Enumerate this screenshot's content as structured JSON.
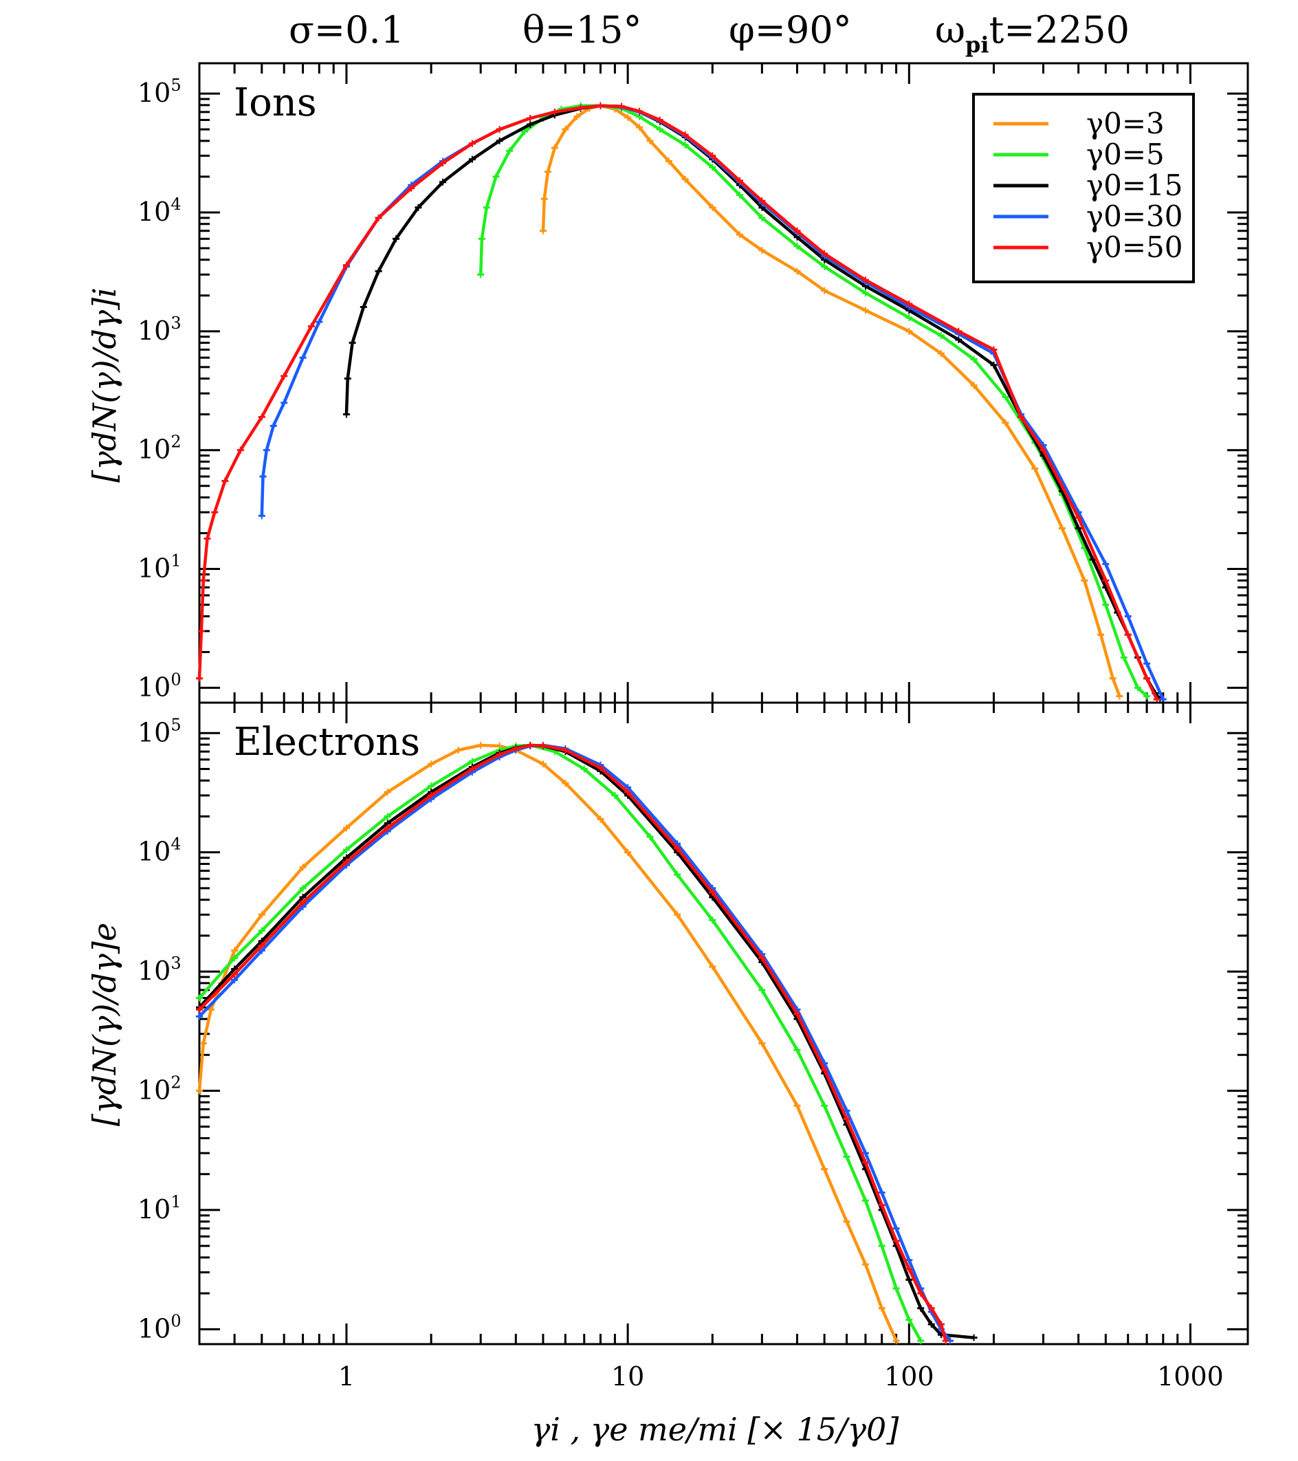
{
  "header": {
    "sigma": "σ=0.1",
    "theta": "θ=15°",
    "phi": "φ=90°",
    "time_omega": "ω",
    "time_sub": "pi",
    "time_rest": "t=2250"
  },
  "axes": {
    "xlabel": "γi , γe me/mi   [× 15/γ0]",
    "ylabel_top": "[γdN(γ)/dγ]i",
    "ylabel_bottom": "[γdN(γ)/dγ]e",
    "x_ticks": [
      "1",
      "10",
      "100",
      "1000"
    ],
    "y_tick_base": "10",
    "y_tick_exponents": [
      "0",
      "1",
      "2",
      "3",
      "4",
      "5"
    ]
  },
  "colors": {
    "g3": "#ff9410",
    "g5": "#22ee22",
    "g15": "#000000",
    "g30": "#1a5cff",
    "g50": "#ff1010"
  },
  "chart_data": [
    {
      "type": "line",
      "title": "Ions",
      "xscale": "log",
      "yscale": "log",
      "xlim": [
        0.3,
        1600
      ],
      "ylim": [
        0.75,
        180000
      ],
      "legend": [
        "γ0=3",
        "γ0=5",
        "γ0=15",
        "γ0=30",
        "γ0=50"
      ],
      "legend_position": "top-right",
      "series": [
        {
          "name": "γ0=3",
          "color": "#ff9410",
          "x": [
            5.0,
            5.05,
            5.2,
            5.5,
            6.0,
            6.6,
            7.3,
            8.0,
            9.0,
            10,
            11,
            12,
            14,
            16,
            20,
            25,
            30,
            40,
            50,
            70,
            100,
            130,
            170,
            220,
            280,
            350,
            420,
            480,
            530,
            560
          ],
          "y": [
            7000,
            13000,
            22000,
            35000,
            50000,
            64000,
            75000,
            79000,
            74000,
            63000,
            52000,
            40000,
            27000,
            19000,
            11000,
            6500,
            4800,
            3200,
            2200,
            1500,
            1000,
            650,
            350,
            170,
            70,
            22,
            8,
            2.8,
            1.2,
            0.85
          ]
        },
        {
          "name": "γ0=5",
          "color": "#22ee22",
          "x": [
            3.0,
            3.03,
            3.15,
            3.4,
            3.8,
            4.3,
            5.0,
            5.8,
            6.8,
            8.0,
            9.5,
            11,
            13,
            16,
            20,
            25,
            30,
            40,
            50,
            70,
            100,
            130,
            170,
            220,
            280,
            350,
            420,
            500,
            580,
            650,
            700
          ],
          "y": [
            3000,
            6000,
            11000,
            20000,
            33000,
            48000,
            62000,
            74000,
            79000,
            79000,
            75000,
            64000,
            50000,
            37000,
            24000,
            14000,
            9000,
            5200,
            3500,
            2100,
            1300,
            920,
            580,
            280,
            115,
            42,
            15,
            5,
            1.8,
            1.0,
            0.85
          ]
        },
        {
          "name": "γ0=15",
          "color": "#000000",
          "x": [
            1.0,
            1.01,
            1.05,
            1.15,
            1.3,
            1.5,
            1.8,
            2.2,
            2.8,
            3.5,
            4.5,
            5.5,
            6.8,
            8.0,
            9.5,
            11,
            13,
            16,
            20,
            25,
            30,
            40,
            50,
            70,
            100,
            150,
            200,
            250,
            300,
            350,
            400,
            450,
            500,
            550,
            600,
            650,
            700,
            750,
            780
          ],
          "y": [
            200,
            400,
            800,
            1600,
            3200,
            6000,
            11000,
            18000,
            28000,
            40000,
            55000,
            66000,
            75000,
            79000,
            78000,
            70000,
            58000,
            43000,
            28000,
            17000,
            11000,
            6200,
            4000,
            2400,
            1500,
            850,
            520,
            190,
            90,
            45,
            22,
            12,
            7,
            4.3,
            2.8,
            1.8,
            1.2,
            0.9,
            0.8
          ]
        },
        {
          "name": "γ0=30",
          "color": "#1a5cff",
          "x": [
            0.5,
            0.505,
            0.52,
            0.55,
            0.6,
            0.7,
            0.8,
            1.0,
            1.3,
            1.7,
            2.2,
            2.8,
            3.5,
            4.5,
            5.5,
            6.8,
            8.0,
            9.5,
            11,
            13,
            16,
            20,
            25,
            30,
            40,
            50,
            70,
            100,
            150,
            200,
            250,
            300,
            400,
            500,
            600,
            700,
            800
          ],
          "y": [
            28,
            60,
            100,
            160,
            250,
            600,
            1200,
            3500,
            9000,
            17000,
            27000,
            38000,
            50000,
            62000,
            70000,
            76000,
            79000,
            77000,
            70000,
            59000,
            44000,
            29000,
            18000,
            12000,
            6800,
            4300,
            2600,
            1600,
            950,
            650,
            200,
            110,
            30,
            11,
            4,
            1.6,
            0.8
          ]
        },
        {
          "name": "γ0=50",
          "color": "#ff1010",
          "x": [
            0.3,
            0.305,
            0.31,
            0.32,
            0.34,
            0.37,
            0.42,
            0.5,
            0.6,
            0.75,
            1.0,
            1.3,
            1.7,
            2.2,
            2.8,
            3.5,
            4.5,
            5.5,
            6.8,
            8.0,
            9.5,
            11,
            13,
            16,
            20,
            25,
            30,
            40,
            50,
            70,
            100,
            150,
            200,
            250,
            300,
            400,
            500,
            600,
            700,
            760
          ],
          "y": [
            1.2,
            3,
            8,
            18,
            30,
            55,
            100,
            190,
            420,
            1100,
            3600,
            9000,
            16000,
            26000,
            38000,
            50000,
            62000,
            70000,
            76000,
            79000,
            78000,
            71000,
            60000,
            45000,
            30000,
            18500,
            12500,
            7000,
            4500,
            2700,
            1700,
            1000,
            700,
            190,
            100,
            27,
            8,
            2.8,
            1.2,
            0.8
          ]
        }
      ]
    },
    {
      "type": "line",
      "title": "Electrons",
      "xscale": "log",
      "yscale": "log",
      "xlim": [
        0.3,
        1600
      ],
      "ylim": [
        0.75,
        180000
      ],
      "series": [
        {
          "name": "γ0=3",
          "color": "#ff9410",
          "x": [
            0.3,
            0.31,
            0.33,
            0.36,
            0.4,
            0.5,
            0.7,
            1.0,
            1.4,
            2.0,
            2.5,
            3.0,
            3.5,
            4.0,
            5.0,
            6.0,
            8.0,
            10,
            15,
            20,
            30,
            40,
            50,
            60,
            70,
            80,
            90
          ],
          "y": [
            100,
            250,
            480,
            800,
            1500,
            3000,
            7500,
            16000,
            32000,
            55000,
            72000,
            79000,
            78000,
            72000,
            55000,
            38000,
            19000,
            10000,
            3000,
            1100,
            250,
            75,
            22,
            8,
            3.5,
            1.5,
            0.8
          ]
        },
        {
          "name": "γ0=5",
          "color": "#22ee22",
          "x": [
            0.3,
            0.4,
            0.5,
            0.7,
            1.0,
            1.4,
            2.0,
            2.8,
            3.5,
            4.0,
            4.5,
            5.5,
            7.0,
            9.0,
            12,
            15,
            20,
            30,
            40,
            50,
            60,
            70,
            80,
            90,
            100,
            110
          ],
          "y": [
            600,
            1300,
            2200,
            5000,
            10500,
            20000,
            36000,
            58000,
            72000,
            78000,
            79000,
            70000,
            50000,
            30000,
            13500,
            6500,
            2700,
            700,
            220,
            75,
            28,
            12,
            5,
            2.2,
            1.2,
            0.8
          ]
        },
        {
          "name": "γ0=15",
          "color": "#000000",
          "x": [
            0.3,
            0.4,
            0.5,
            0.7,
            1.0,
            1.4,
            2.0,
            2.8,
            3.5,
            4.0,
            4.5,
            5.0,
            6.0,
            8.0,
            10,
            15,
            20,
            30,
            40,
            50,
            60,
            70,
            80,
            90,
            100,
            110,
            120,
            130,
            170
          ],
          "y": [
            500,
            1050,
            1800,
            4200,
            9000,
            17500,
            32000,
            52000,
            68000,
            75000,
            79000,
            78000,
            70000,
            48000,
            30000,
            10000,
            4200,
            1200,
            400,
            140,
            52,
            22,
            10,
            5,
            2.6,
            1.5,
            1.1,
            0.9,
            0.85
          ]
        },
        {
          "name": "γ0=30",
          "color": "#1a5cff",
          "x": [
            0.3,
            0.4,
            0.5,
            0.7,
            1.0,
            1.4,
            2.0,
            2.8,
            3.5,
            4.0,
            4.5,
            5.0,
            6.0,
            8.0,
            10,
            15,
            20,
            30,
            40,
            50,
            60,
            70,
            80,
            90,
            100,
            110,
            120,
            130,
            140
          ],
          "y": [
            420,
            850,
            1500,
            3500,
            7800,
            15000,
            28000,
            47000,
            63000,
            72000,
            78000,
            79000,
            74000,
            54000,
            35000,
            11800,
            5000,
            1400,
            480,
            170,
            68,
            30,
            14,
            7,
            3.8,
            2.2,
            1.4,
            1.0,
            0.8
          ]
        },
        {
          "name": "γ0=50",
          "color": "#ff1010",
          "x": [
            0.3,
            0.4,
            0.5,
            0.7,
            1.0,
            1.4,
            2.0,
            2.8,
            3.5,
            4.0,
            4.5,
            5.0,
            6.0,
            8.0,
            10,
            15,
            20,
            30,
            40,
            50,
            60,
            70,
            80,
            90,
            100,
            110,
            120,
            130,
            135
          ],
          "y": [
            480,
            950,
            1650,
            3800,
            8300,
            16000,
            30000,
            50000,
            66000,
            74000,
            79000,
            78500,
            72000,
            51000,
            32000,
            10800,
            4600,
            1300,
            440,
            150,
            58,
            25,
            11,
            5.5,
            3.2,
            2.0,
            1.5,
            1.1,
            0.8
          ]
        }
      ]
    }
  ]
}
